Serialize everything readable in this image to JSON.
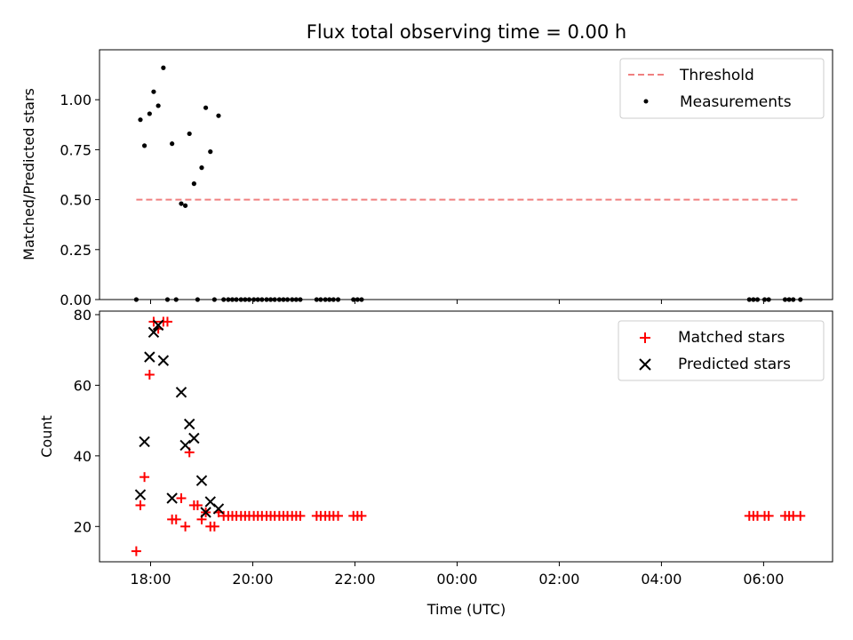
{
  "chart_data": [
    {
      "type": "scatter",
      "title": "Flux total observing time = 0.00 h",
      "ylabel": "Matched/Predicted stars",
      "xlabel": "",
      "xlim": [
        17.0,
        31.35
      ],
      "ylim": [
        0,
        1.25
      ],
      "yticks": [
        0.0,
        0.25,
        0.5,
        0.75,
        1.0
      ],
      "ytick_labels": [
        "0.00",
        "0.25",
        "0.50",
        "0.75",
        "1.00"
      ],
      "legend_position": "top-right",
      "threshold": {
        "name": "Threshold",
        "value": 0.5,
        "x_range": [
          17.72,
          30.72
        ],
        "color": "#f08080"
      },
      "series": [
        {
          "name": "Measurements",
          "color": "#000000",
          "points": [
            [
              17.72,
              0.0
            ],
            [
              17.8,
              0.9
            ],
            [
              17.88,
              0.77
            ],
            [
              17.98,
              0.93
            ],
            [
              18.06,
              1.04
            ],
            [
              18.15,
              0.97
            ],
            [
              18.25,
              1.16
            ],
            [
              18.33,
              0.0
            ],
            [
              18.42,
              0.78
            ],
            [
              18.5,
              0.0
            ],
            [
              18.6,
              0.48
            ],
            [
              18.68,
              0.47
            ],
            [
              18.76,
              0.83
            ],
            [
              18.85,
              0.58
            ],
            [
              18.92,
              0.0
            ],
            [
              19.0,
              0.66
            ],
            [
              19.08,
              0.96
            ],
            [
              19.17,
              0.74
            ],
            [
              19.25,
              0.0
            ],
            [
              19.33,
              0.92
            ],
            [
              19.43,
              0.0
            ],
            [
              19.52,
              0.0
            ],
            [
              19.6,
              0.0
            ],
            [
              19.68,
              0.0
            ],
            [
              19.77,
              0.0
            ],
            [
              19.85,
              0.0
            ],
            [
              19.93,
              0.0
            ],
            [
              20.02,
              0.0
            ],
            [
              20.1,
              0.0
            ],
            [
              20.18,
              0.0
            ],
            [
              20.27,
              0.0
            ],
            [
              20.35,
              0.0
            ],
            [
              20.43,
              0.0
            ],
            [
              20.52,
              0.0
            ],
            [
              20.6,
              0.0
            ],
            [
              20.68,
              0.0
            ],
            [
              20.77,
              0.0
            ],
            [
              20.85,
              0.0
            ],
            [
              20.93,
              0.0
            ],
            [
              21.25,
              0.0
            ],
            [
              21.33,
              0.0
            ],
            [
              21.42,
              0.0
            ],
            [
              21.5,
              0.0
            ],
            [
              21.58,
              0.0
            ],
            [
              21.67,
              0.0
            ],
            [
              21.97,
              0.0
            ],
            [
              22.05,
              0.0
            ],
            [
              22.13,
              0.0
            ],
            [
              29.72,
              0.0
            ],
            [
              29.8,
              0.0
            ],
            [
              29.88,
              0.0
            ],
            [
              30.02,
              0.0
            ],
            [
              30.1,
              0.0
            ],
            [
              30.42,
              0.0
            ],
            [
              30.5,
              0.0
            ],
            [
              30.58,
              0.0
            ],
            [
              30.72,
              0.0
            ]
          ]
        }
      ]
    },
    {
      "type": "scatter",
      "title": "",
      "ylabel": "Count",
      "xlabel": "Time (UTC)",
      "xlim": [
        17.0,
        31.35
      ],
      "ylim": [
        10,
        81
      ],
      "yticks": [
        20,
        40,
        60,
        80
      ],
      "ytick_labels": [
        "20",
        "40",
        "60",
        "80"
      ],
      "xticks": [
        18,
        20,
        22,
        24,
        26,
        28,
        30
      ],
      "xtick_labels": [
        "18:00",
        "20:00",
        "22:00",
        "00:00",
        "02:00",
        "04:00",
        "06:00"
      ],
      "legend_position": "top-right",
      "series": [
        {
          "name": "Matched stars",
          "color": "#ff0000",
          "marker": "plus",
          "points": [
            [
              17.72,
              13
            ],
            [
              17.8,
              26
            ],
            [
              17.88,
              34
            ],
            [
              17.98,
              63
            ],
            [
              18.06,
              78
            ],
            [
              18.15,
              76
            ],
            [
              18.25,
              78
            ],
            [
              18.33,
              78
            ],
            [
              18.42,
              22
            ],
            [
              18.5,
              22
            ],
            [
              18.6,
              28
            ],
            [
              18.68,
              20
            ],
            [
              18.76,
              41
            ],
            [
              18.85,
              26
            ],
            [
              18.92,
              26
            ],
            [
              19.0,
              22
            ],
            [
              19.08,
              24
            ],
            [
              19.17,
              20
            ],
            [
              19.25,
              20
            ],
            [
              19.33,
              24
            ],
            [
              19.43,
              23
            ],
            [
              19.52,
              23
            ],
            [
              19.6,
              23
            ],
            [
              19.68,
              23
            ],
            [
              19.77,
              23
            ],
            [
              19.85,
              23
            ],
            [
              19.93,
              23
            ],
            [
              20.02,
              23
            ],
            [
              20.1,
              23
            ],
            [
              20.18,
              23
            ],
            [
              20.27,
              23
            ],
            [
              20.35,
              23
            ],
            [
              20.43,
              23
            ],
            [
              20.52,
              23
            ],
            [
              20.6,
              23
            ],
            [
              20.68,
              23
            ],
            [
              20.77,
              23
            ],
            [
              20.85,
              23
            ],
            [
              20.93,
              23
            ],
            [
              21.25,
              23
            ],
            [
              21.33,
              23
            ],
            [
              21.42,
              23
            ],
            [
              21.5,
              23
            ],
            [
              21.58,
              23
            ],
            [
              21.67,
              23
            ],
            [
              21.97,
              23
            ],
            [
              22.05,
              23
            ],
            [
              22.13,
              23
            ],
            [
              29.72,
              23
            ],
            [
              29.8,
              23
            ],
            [
              29.88,
              23
            ],
            [
              30.02,
              23
            ],
            [
              30.1,
              23
            ],
            [
              30.42,
              23
            ],
            [
              30.5,
              23
            ],
            [
              30.58,
              23
            ],
            [
              30.72,
              23
            ]
          ]
        },
        {
          "name": "Predicted stars",
          "color": "#000000",
          "marker": "x",
          "points": [
            [
              17.8,
              29
            ],
            [
              17.88,
              44
            ],
            [
              17.98,
              68
            ],
            [
              18.06,
              75
            ],
            [
              18.15,
              77
            ],
            [
              18.25,
              67
            ],
            [
              18.42,
              28
            ],
            [
              18.6,
              58
            ],
            [
              18.68,
              43
            ],
            [
              18.76,
              49
            ],
            [
              18.85,
              45
            ],
            [
              19.0,
              33
            ],
            [
              19.08,
              24
            ],
            [
              19.17,
              27
            ],
            [
              19.33,
              25
            ]
          ]
        }
      ]
    }
  ]
}
